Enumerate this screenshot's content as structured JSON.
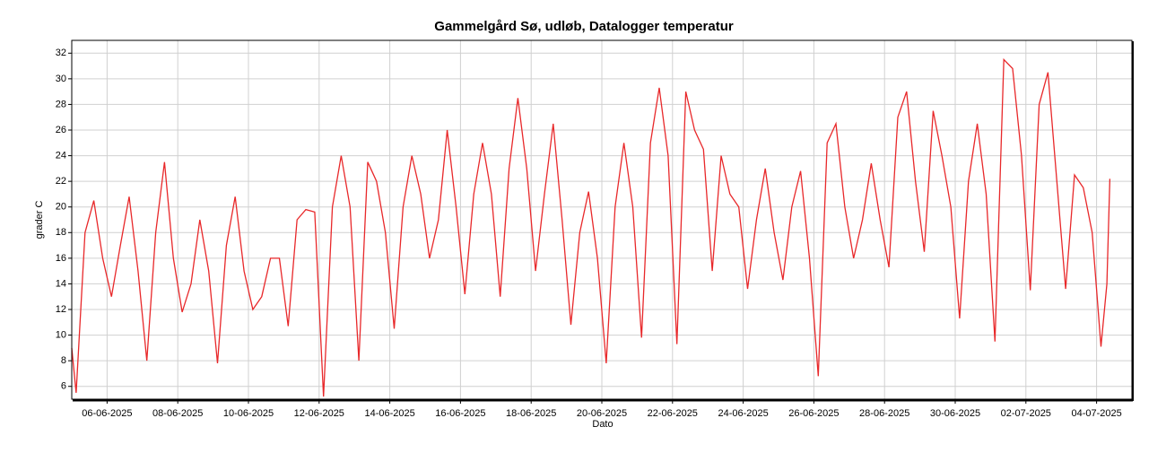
{
  "chart_data": {
    "type": "line",
    "title": "Gammelgård Sø, udløb, Datalogger temperatur",
    "x_label": "Dato",
    "y_label": "grader C",
    "x": [
      "2025-06-05 00:00",
      "2025-06-05 03:00",
      "2025-06-05 09:00",
      "2025-06-05 15:00",
      "2025-06-05 21:00",
      "2025-06-06 03:00",
      "2025-06-06 09:00",
      "2025-06-06 15:00",
      "2025-06-06 21:00",
      "2025-06-07 03:00",
      "2025-06-07 09:00",
      "2025-06-07 15:00",
      "2025-06-07 21:00",
      "2025-06-08 03:00",
      "2025-06-08 09:00",
      "2025-06-08 15:00",
      "2025-06-08 21:00",
      "2025-06-09 03:00",
      "2025-06-09 09:00",
      "2025-06-09 15:00",
      "2025-06-09 21:00",
      "2025-06-10 03:00",
      "2025-06-10 09:00",
      "2025-06-10 15:00",
      "2025-06-10 21:00",
      "2025-06-11 03:00",
      "2025-06-11 09:00",
      "2025-06-11 15:00",
      "2025-06-11 21:00",
      "2025-06-12 03:00",
      "2025-06-12 09:00",
      "2025-06-12 15:00",
      "2025-06-12 21:00",
      "2025-06-13 03:00",
      "2025-06-13 09:00",
      "2025-06-13 15:00",
      "2025-06-13 21:00",
      "2025-06-14 03:00",
      "2025-06-14 09:00",
      "2025-06-14 15:00",
      "2025-06-14 21:00",
      "2025-06-15 03:00",
      "2025-06-15 09:00",
      "2025-06-15 15:00",
      "2025-06-15 21:00",
      "2025-06-16 03:00",
      "2025-06-16 09:00",
      "2025-06-16 15:00",
      "2025-06-16 21:00",
      "2025-06-17 03:00",
      "2025-06-17 09:00",
      "2025-06-17 15:00",
      "2025-06-17 21:00",
      "2025-06-18 03:00",
      "2025-06-18 09:00",
      "2025-06-18 15:00",
      "2025-06-18 21:00",
      "2025-06-19 03:00",
      "2025-06-19 09:00",
      "2025-06-19 15:00",
      "2025-06-19 21:00",
      "2025-06-20 03:00",
      "2025-06-20 09:00",
      "2025-06-20 15:00",
      "2025-06-20 21:00",
      "2025-06-21 03:00",
      "2025-06-21 09:00",
      "2025-06-21 15:00",
      "2025-06-21 21:00",
      "2025-06-22 03:00",
      "2025-06-22 09:00",
      "2025-06-22 15:00",
      "2025-06-22 21:00",
      "2025-06-23 03:00",
      "2025-06-23 09:00",
      "2025-06-23 15:00",
      "2025-06-23 21:00",
      "2025-06-24 03:00",
      "2025-06-24 09:00",
      "2025-06-24 15:00",
      "2025-06-24 21:00",
      "2025-06-25 03:00",
      "2025-06-25 09:00",
      "2025-06-25 15:00",
      "2025-06-25 21:00",
      "2025-06-26 03:00",
      "2025-06-26 09:00",
      "2025-06-26 15:00",
      "2025-06-26 21:00",
      "2025-06-27 03:00",
      "2025-06-27 09:00",
      "2025-06-27 15:00",
      "2025-06-27 21:00",
      "2025-06-28 03:00",
      "2025-06-28 09:00",
      "2025-06-28 15:00",
      "2025-06-28 21:00",
      "2025-06-29 03:00",
      "2025-06-29 09:00",
      "2025-06-29 15:00",
      "2025-06-29 21:00",
      "2025-06-30 03:00",
      "2025-06-30 09:00",
      "2025-06-30 15:00",
      "2025-06-30 21:00",
      "2025-07-01 03:00",
      "2025-07-01 09:00",
      "2025-07-01 15:00",
      "2025-07-01 21:00",
      "2025-07-02 03:00",
      "2025-07-02 09:00",
      "2025-07-02 15:00",
      "2025-07-02 21:00",
      "2025-07-03 03:00",
      "2025-07-03 09:00",
      "2025-07-03 15:00",
      "2025-07-03 21:00",
      "2025-07-04 03:00",
      "2025-07-04 07:00",
      "2025-07-04 09:00"
    ],
    "series": [
      {
        "name": "Datalogger temperatur",
        "color": "#e8282a",
        "values": [
          9,
          5.5,
          18,
          20.5,
          16,
          13,
          17,
          20.8,
          15,
          8,
          18,
          23.5,
          16,
          11.8,
          14,
          19,
          15,
          7.8,
          17,
          20.8,
          15,
          12,
          13,
          16,
          16,
          10.7,
          19,
          19.8,
          19.6,
          5.2,
          20,
          24,
          20,
          8,
          23.5,
          22,
          18,
          10.5,
          20,
          24,
          21,
          16,
          19,
          26,
          20,
          13.2,
          21,
          25,
          21,
          13,
          23,
          28.5,
          23,
          15,
          21,
          26.5,
          19,
          10.8,
          18,
          21.2,
          16,
          7.8,
          20,
          25,
          20,
          9.8,
          25,
          29.3,
          24,
          9.3,
          29,
          26,
          24.5,
          15,
          24,
          21,
          20,
          13.6,
          19,
          23,
          18,
          14.3,
          20,
          22.8,
          16,
          6.8,
          25,
          26.5,
          20,
          16,
          19,
          23.4,
          19,
          15.3,
          27,
          29,
          22,
          16.5,
          27.5,
          24,
          20,
          11.3,
          22,
          26.5,
          21,
          9.5,
          31.5,
          30.8,
          24,
          13.5,
          28,
          30.5,
          22,
          13.6,
          22.5,
          21.5,
          18,
          9.1,
          14,
          22.2
        ]
      }
    ],
    "xlim": [
      "2025-06-05",
      "2025-07-05"
    ],
    "xticks": [
      {
        "value": "2025-06-06",
        "label": "06-06-2025"
      },
      {
        "value": "2025-06-08",
        "label": "08-06-2025"
      },
      {
        "value": "2025-06-10",
        "label": "10-06-2025"
      },
      {
        "value": "2025-06-12",
        "label": "12-06-2025"
      },
      {
        "value": "2025-06-14",
        "label": "14-06-2025"
      },
      {
        "value": "2025-06-16",
        "label": "16-06-2025"
      },
      {
        "value": "2025-06-18",
        "label": "18-06-2025"
      },
      {
        "value": "2025-06-20",
        "label": "20-06-2025"
      },
      {
        "value": "2025-06-22",
        "label": "22-06-2025"
      },
      {
        "value": "2025-06-24",
        "label": "24-06-2025"
      },
      {
        "value": "2025-06-26",
        "label": "26-06-2025"
      },
      {
        "value": "2025-06-28",
        "label": "28-06-2025"
      },
      {
        "value": "2025-06-30",
        "label": "30-06-2025"
      },
      {
        "value": "2025-07-02",
        "label": "02-07-2025"
      },
      {
        "value": "2025-07-04",
        "label": "04-07-2025"
      }
    ],
    "ylim": [
      5,
      33
    ],
    "yticks": [
      6,
      8,
      10,
      12,
      14,
      16,
      18,
      20,
      22,
      24,
      26,
      28,
      30,
      32
    ],
    "grid": true
  }
}
